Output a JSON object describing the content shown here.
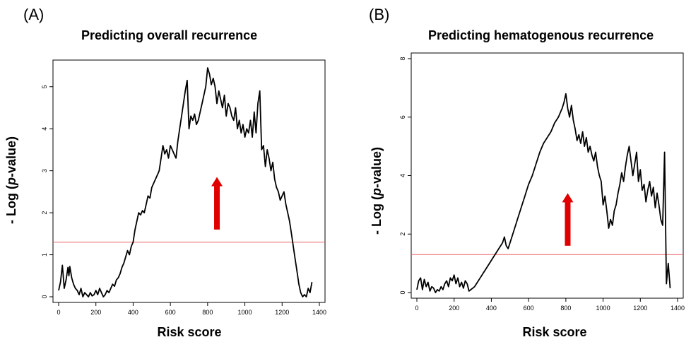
{
  "chart_data": [
    {
      "type": "line",
      "panel_label": "(A)",
      "title": "Predicting overall recurrence",
      "xlabel": "Risk score",
      "ylabel": "- Log (p-value)",
      "xlim": [
        0,
        1400
      ],
      "ylim": [
        0,
        5.5
      ],
      "xticks": [
        0,
        200,
        400,
        600,
        800,
        1000,
        1200,
        1400
      ],
      "yticks": [
        0,
        1,
        2,
        3,
        4,
        5
      ],
      "threshold": 1.3,
      "threshold_color": "#e8656a",
      "arrow": {
        "x": 850,
        "y_start": 1.6,
        "y_end": 2.85,
        "color": "#e00000"
      },
      "series": [
        {
          "x": [
            0,
            10,
            20,
            30,
            40,
            50,
            55,
            60,
            70,
            80,
            90,
            100,
            110,
            120,
            130,
            140,
            150,
            160,
            170,
            180,
            190,
            200,
            210,
            220,
            230,
            240,
            250,
            260,
            270,
            280,
            290,
            300,
            310,
            320,
            330,
            340,
            350,
            360,
            370,
            380,
            390,
            400,
            410,
            420,
            430,
            440,
            450,
            460,
            470,
            480,
            490,
            500,
            510,
            520,
            530,
            540,
            550,
            560,
            570,
            580,
            590,
            600,
            610,
            620,
            630,
            640,
            650,
            660,
            670,
            680,
            690,
            700,
            710,
            720,
            730,
            740,
            750,
            760,
            770,
            780,
            790,
            800,
            810,
            820,
            830,
            840,
            845,
            850,
            860,
            870,
            880,
            890,
            900,
            910,
            920,
            930,
            940,
            950,
            960,
            970,
            980,
            990,
            1000,
            1010,
            1020,
            1030,
            1040,
            1050,
            1060,
            1070,
            1080,
            1090,
            1100,
            1110,
            1120,
            1130,
            1140,
            1150,
            1160,
            1170,
            1180,
            1190,
            1200,
            1210,
            1220,
            1230,
            1240,
            1250,
            1260,
            1270,
            1280,
            1290,
            1300,
            1310,
            1320,
            1330,
            1340,
            1350,
            1360
          ],
          "y": [
            0.15,
            0.35,
            0.75,
            0.2,
            0.4,
            0.7,
            0.5,
            0.72,
            0.45,
            0.3,
            0.2,
            0.15,
            0.05,
            0.2,
            0.0,
            0.1,
            0.05,
            0.0,
            0.1,
            0.02,
            0.05,
            0.15,
            0.05,
            0.2,
            0.1,
            0.0,
            0.05,
            0.15,
            0.1,
            0.2,
            0.3,
            0.25,
            0.4,
            0.45,
            0.55,
            0.7,
            0.8,
            0.95,
            1.1,
            1.0,
            1.2,
            1.3,
            1.6,
            1.8,
            2.0,
            1.95,
            2.05,
            2.0,
            2.2,
            2.4,
            2.35,
            2.6,
            2.7,
            2.8,
            2.9,
            3.0,
            3.3,
            3.6,
            3.4,
            3.5,
            3.3,
            3.6,
            3.5,
            3.4,
            3.3,
            3.7,
            4.0,
            4.3,
            4.6,
            4.9,
            5.15,
            4.0,
            4.3,
            4.2,
            4.35,
            4.1,
            4.2,
            4.4,
            4.6,
            4.8,
            5.0,
            5.45,
            5.3,
            5.05,
            5.2,
            5.0,
            4.8,
            4.6,
            4.9,
            4.7,
            4.5,
            4.8,
            4.3,
            4.6,
            4.5,
            4.3,
            4.2,
            4.5,
            4.0,
            4.2,
            3.9,
            4.1,
            3.8,
            4.0,
            3.9,
            4.2,
            3.8,
            4.4,
            3.9,
            4.6,
            4.9,
            3.5,
            3.6,
            3.1,
            3.5,
            3.3,
            3.0,
            3.2,
            2.8,
            2.6,
            2.5,
            2.3,
            2.4,
            2.5,
            2.2,
            2.0,
            1.8,
            1.5,
            1.2,
            0.9,
            0.6,
            0.3,
            0.1,
            0.0,
            0.05,
            0.0,
            0.2,
            0.1,
            0.35
          ]
        }
      ]
    },
    {
      "type": "line",
      "panel_label": "(B)",
      "title": "Predicting hematogenous recurrence",
      "xlabel": "Risk score",
      "ylabel": "- Log (p-value)",
      "xlim": [
        0,
        1400
      ],
      "ylim": [
        0,
        8
      ],
      "xticks": [
        0,
        200,
        400,
        600,
        800,
        1000,
        1200,
        1400
      ],
      "yticks": [
        0,
        2,
        4,
        6,
        8
      ],
      "threshold": 1.3,
      "threshold_color": "#e8656a",
      "arrow": {
        "x": 810,
        "y_start": 1.6,
        "y_end": 3.4,
        "color": "#e00000"
      },
      "series": [
        {
          "x": [
            0,
            10,
            20,
            30,
            40,
            50,
            60,
            70,
            80,
            90,
            100,
            110,
            120,
            130,
            140,
            150,
            160,
            170,
            180,
            190,
            200,
            210,
            220,
            230,
            240,
            250,
            260,
            270,
            280,
            290,
            300,
            310,
            320,
            340,
            360,
            380,
            400,
            420,
            440,
            460,
            470,
            480,
            490,
            500,
            520,
            540,
            560,
            580,
            600,
            620,
            640,
            660,
            680,
            700,
            720,
            740,
            760,
            780,
            790,
            800,
            810,
            820,
            830,
            840,
            850,
            860,
            870,
            880,
            890,
            900,
            910,
            920,
            930,
            940,
            950,
            960,
            970,
            980,
            990,
            1000,
            1010,
            1020,
            1030,
            1040,
            1050,
            1060,
            1070,
            1080,
            1090,
            1100,
            1110,
            1120,
            1130,
            1140,
            1150,
            1160,
            1170,
            1180,
            1190,
            1200,
            1210,
            1220,
            1230,
            1240,
            1250,
            1260,
            1270,
            1280,
            1290,
            1300,
            1310,
            1320,
            1330,
            1340,
            1350,
            1360
          ],
          "y": [
            0.1,
            0.4,
            0.5,
            0.1,
            0.45,
            0.2,
            0.35,
            0.05,
            0.2,
            0.15,
            0.0,
            0.1,
            0.05,
            0.2,
            0.1,
            0.3,
            0.4,
            0.2,
            0.5,
            0.4,
            0.6,
            0.3,
            0.5,
            0.2,
            0.35,
            0.15,
            0.4,
            0.3,
            0.05,
            0.1,
            0.15,
            0.2,
            0.3,
            0.5,
            0.7,
            0.9,
            1.1,
            1.3,
            1.5,
            1.7,
            1.9,
            1.6,
            1.5,
            1.7,
            2.1,
            2.5,
            2.9,
            3.3,
            3.7,
            4.0,
            4.4,
            4.8,
            5.1,
            5.3,
            5.5,
            5.8,
            6.0,
            6.3,
            6.5,
            6.8,
            6.3,
            6.0,
            6.4,
            5.9,
            5.6,
            5.2,
            5.4,
            5.1,
            5.5,
            5.0,
            5.3,
            4.8,
            5.0,
            4.7,
            4.5,
            4.8,
            4.3,
            4.0,
            3.8,
            3.0,
            3.3,
            2.8,
            2.2,
            2.5,
            2.3,
            2.8,
            3.0,
            3.4,
            3.7,
            4.1,
            3.8,
            4.3,
            4.7,
            5.0,
            4.5,
            4.0,
            4.4,
            4.8,
            3.8,
            4.2,
            3.5,
            3.7,
            3.1,
            3.5,
            3.8,
            3.3,
            3.6,
            2.9,
            3.4,
            3.0,
            2.5,
            2.3,
            4.8,
            0.3,
            1.0,
            0.15
          ]
        }
      ]
    }
  ]
}
